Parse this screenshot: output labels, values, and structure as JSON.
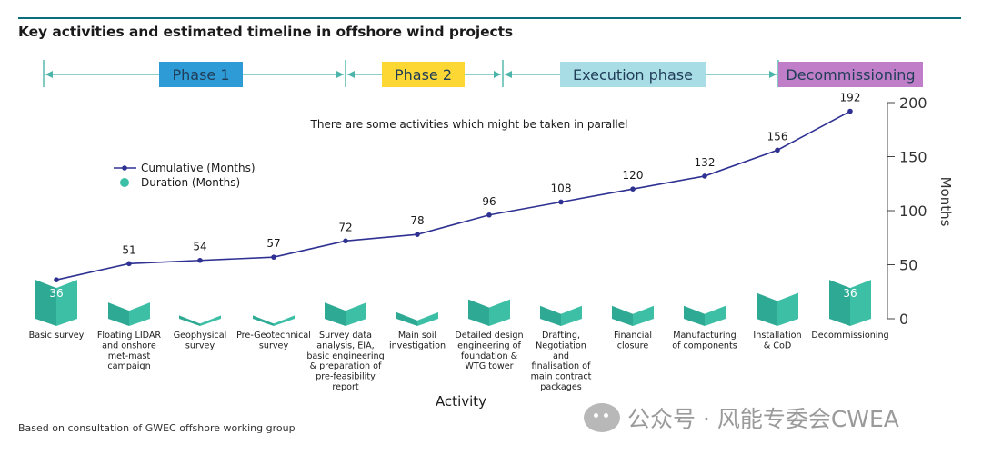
{
  "title": "Key activities and estimated timeline in offshore wind projects",
  "footer": "Based on consultation of GWEC offshore working group",
  "watermark": "公众号 · 风能专委会CWEA",
  "colors": {
    "rule": "#0b6e7a",
    "bar_front": "#2eaa94",
    "bar_side": "#3dbfa6",
    "line": "#2e3192",
    "phase1": "#2e9bd6",
    "phase2": "#fdd835",
    "execution": "#a9dde6",
    "decommissioning": "#c07ec9",
    "arrow": "#4bb5a9"
  },
  "phases": [
    {
      "label": "Phase 1",
      "color": "#2e9bd6"
    },
    {
      "label": "Phase 2",
      "color": "#fdd835"
    },
    {
      "label": "Execution phase",
      "color": "#a9dde6"
    },
    {
      "label": "Decommissioning",
      "color": "#c07ec9"
    }
  ],
  "annotation": "There are some activities which might be taken in parallel",
  "chart_data": {
    "type": "bar",
    "title": "Key activities and estimated timeline in offshore wind projects",
    "xlabel": "Activity",
    "ylabel": "Months",
    "ylim": [
      0,
      200
    ],
    "yticks": [
      0,
      50,
      100,
      150,
      200
    ],
    "legend_position": "top-left",
    "categories": [
      "Basic survey",
      "Floating LIDAR and onshore met-mast campaign",
      "Geophysical survey",
      "Pre-Geotechnical survey",
      "Survey data analysis, EIA, basic engineering & preparation of pre-feasibility report",
      "Main soil investigation",
      "Detailed design engineering of foundation & WTG tower",
      "Drafting, Negotiation and finalisation of main contract packages",
      "Financial closure",
      "Manufacturing of components",
      "Installation & CoD",
      "Decommissioning"
    ],
    "category_lines": [
      [
        "Basic survey"
      ],
      [
        "Floating LIDAR",
        "and onshore",
        "met-mast",
        "campaign"
      ],
      [
        "Geophysical",
        "survey"
      ],
      [
        "Pre-Geotechnical",
        "survey"
      ],
      [
        "Survey data",
        "analysis, EIA,",
        "basic engineering",
        "& preparation of",
        "pre-feasibility",
        "report"
      ],
      [
        "Main soil",
        "investigation"
      ],
      [
        "Detailed design",
        "engineering of",
        "foundation &",
        "WTG tower"
      ],
      [
        "Drafting,",
        "Negotiation",
        "and",
        "finalisation of",
        "main contract",
        "packages"
      ],
      [
        "Financial",
        "closure"
      ],
      [
        "Manufacturing",
        "of components"
      ],
      [
        "Installation",
        "& CoD"
      ],
      [
        "Decommissioning"
      ]
    ],
    "series": [
      {
        "name": "Duration (Months)",
        "type": "bar",
        "values": [
          36,
          15,
          3,
          3,
          15,
          6,
          18,
          12,
          12,
          12,
          24,
          36
        ]
      },
      {
        "name": "Cumulative (Months)",
        "type": "line",
        "values": [
          36,
          51,
          54,
          57,
          72,
          78,
          96,
          108,
          120,
          132,
          156,
          192
        ]
      }
    ]
  }
}
